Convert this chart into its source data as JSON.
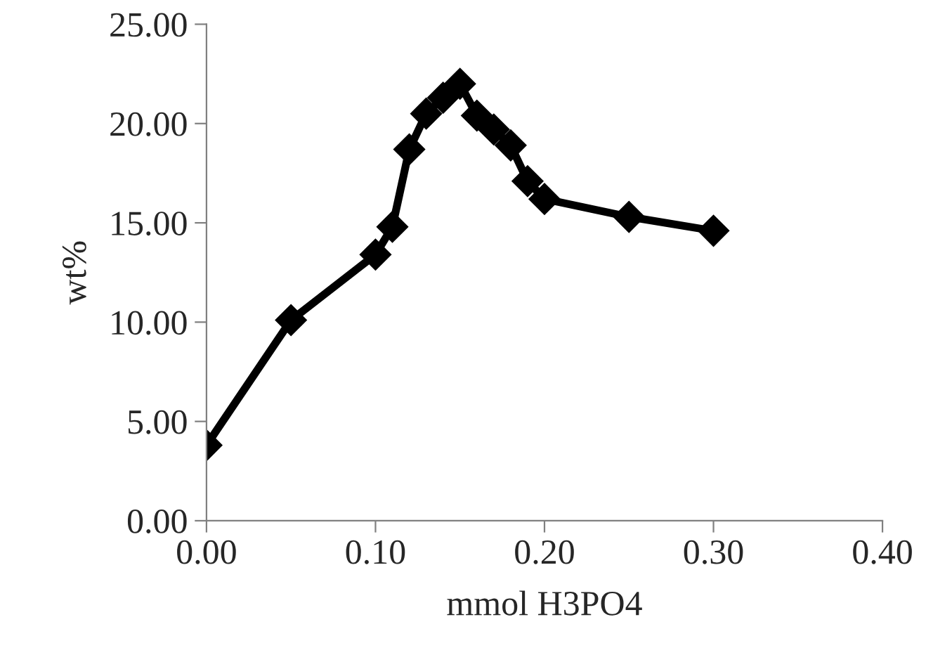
{
  "chart_data": {
    "type": "line",
    "xlabel": "mmol H3PO4",
    "ylabel": "wt%",
    "x": [
      0,
      0.05,
      0.1,
      0.11,
      0.12,
      0.13,
      0.14,
      0.15,
      0.16,
      0.17,
      0.18,
      0.19,
      0.2,
      0.25,
      0.3
    ],
    "series": [
      {
        "color": "#000000",
        "values": [
          3.8,
          10.1,
          13.4,
          14.8,
          18.7,
          20.5,
          21.3,
          22.0,
          20.4,
          19.7,
          18.9,
          17.1,
          16.2,
          15.3,
          14.6
        ]
      }
    ],
    "xlim": [
      0,
      0.4
    ],
    "xticks": [
      {
        "value": 0,
        "label": "0.00"
      },
      {
        "value": 0.1,
        "label": "0.10"
      },
      {
        "value": 0.2,
        "label": "0.20"
      },
      {
        "value": 0.3,
        "label": "0.30"
      },
      {
        "value": 0.4,
        "label": "0.40"
      }
    ],
    "ylim": [
      0,
      25
    ],
    "yticks": [
      {
        "value": 0,
        "label": "0.00"
      },
      {
        "value": 5,
        "label": "5.00"
      },
      {
        "value": 10,
        "label": "10.00"
      },
      {
        "value": 15,
        "label": "15.00"
      },
      {
        "value": 20,
        "label": "20.00"
      },
      {
        "value": 25,
        "label": "25.00"
      }
    ],
    "grid": false,
    "marker": "diamond",
    "line_style": "solid"
  }
}
